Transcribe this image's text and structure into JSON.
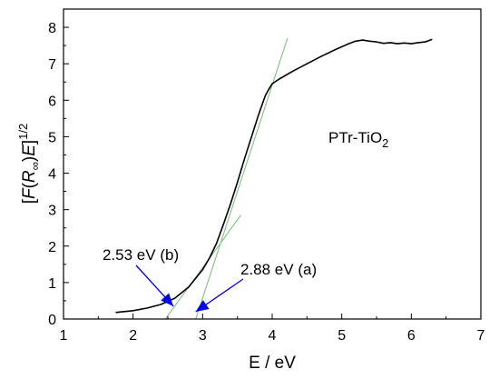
{
  "chart_data": {
    "type": "line",
    "title": "",
    "xlabel": "E / eV",
    "ylabel": {
      "prefix": "[",
      "F": "F",
      "open": "(",
      "R": "R",
      "sub": "∞",
      "close": ")",
      "E": "E",
      "bracket": "]",
      "exp": "1/2"
    },
    "xlim": [
      1,
      7
    ],
    "ylim": [
      0,
      8.5
    ],
    "xticks": [
      "1",
      "2",
      "3",
      "4",
      "5",
      "6",
      "7"
    ],
    "yticks": [
      "0",
      "1",
      "2",
      "3",
      "4",
      "5",
      "6",
      "7",
      "8"
    ],
    "grid": false,
    "legend": "none",
    "sample_label": {
      "main": "PTr-TiO",
      "sub": "2"
    },
    "series": [
      {
        "color": "#000000",
        "x": [
          1.75,
          2.0,
          2.2,
          2.4,
          2.6,
          2.8,
          3.0,
          3.1,
          3.2,
          3.3,
          3.4,
          3.5,
          3.6,
          3.7,
          3.8,
          3.9,
          3.95,
          4.0,
          4.1,
          4.3,
          4.5,
          4.7,
          4.9,
          5.1,
          5.2,
          5.3,
          5.4,
          5.5,
          5.6,
          5.7,
          5.8,
          5.9,
          6.0,
          6.1,
          6.2,
          6.3
        ],
        "y": [
          0.18,
          0.23,
          0.3,
          0.4,
          0.57,
          0.88,
          1.35,
          1.68,
          2.08,
          2.6,
          3.15,
          3.75,
          4.38,
          4.98,
          5.58,
          6.12,
          6.3,
          6.45,
          6.58,
          6.8,
          7.0,
          7.2,
          7.38,
          7.55,
          7.62,
          7.65,
          7.62,
          7.6,
          7.56,
          7.58,
          7.55,
          7.57,
          7.55,
          7.58,
          7.6,
          7.67
        ]
      }
    ],
    "fit_lines": [
      {
        "color": "#7ec37e",
        "x": [
          2.85,
          4.22
        ],
        "y": [
          -0.3,
          7.7
        ]
      },
      {
        "color": "#7ec37e",
        "x": [
          2.35,
          3.55
        ],
        "y": [
          -0.3,
          2.85
        ]
      }
    ],
    "annotations": [
      {
        "text": "2.53 eV (b)",
        "arrow_to": [
          2.58,
          0.35
        ],
        "color": "#0000ee"
      },
      {
        "text": "2.88 eV (a)",
        "arrow_to": [
          2.9,
          0.2
        ],
        "color": "#0000ee"
      }
    ]
  }
}
